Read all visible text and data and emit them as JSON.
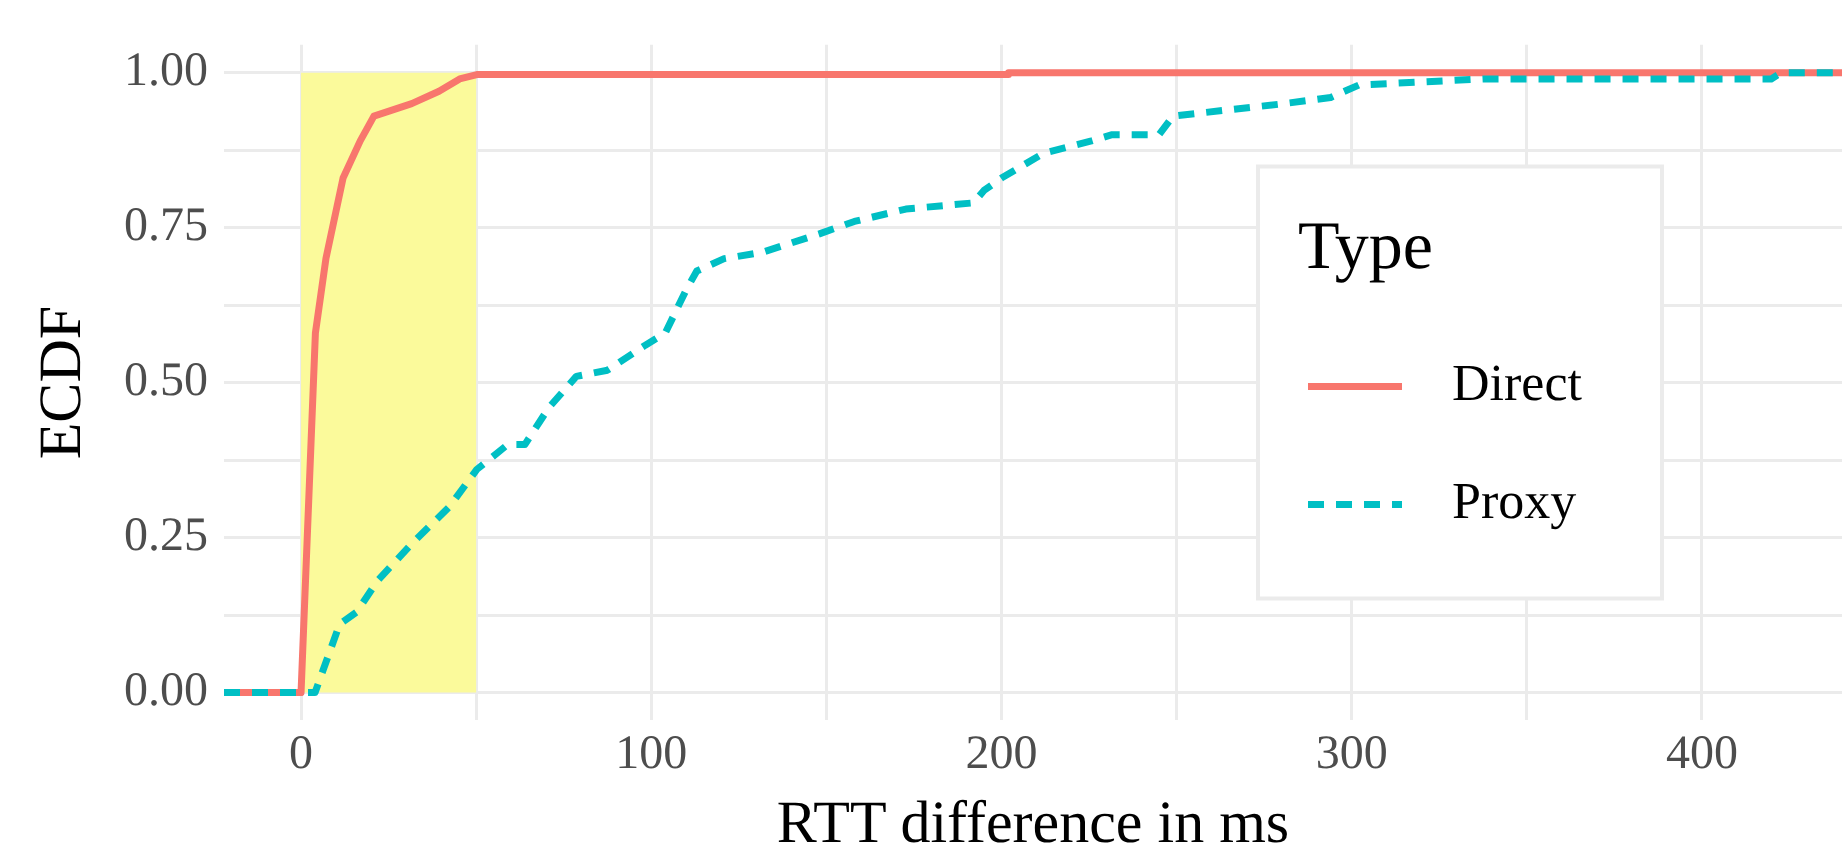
{
  "chart_data": {
    "type": "line",
    "xlabel": "RTT difference in ms",
    "ylabel": "ECDF",
    "legend_title": "Type",
    "legend": "right",
    "grid": true,
    "marker": "none",
    "xlim": [
      -22,
      440
    ],
    "ylim": [
      -0.045,
      1.045
    ],
    "xticks": [
      0,
      {
        "value": 50,
        "label": null
      },
      100,
      {
        "value": 150,
        "label": null
      },
      200,
      {
        "value": 250,
        "label": null
      },
      300,
      {
        "value": 350,
        "label": null
      },
      400
    ],
    "yticks": [
      "0.00",
      {
        "value": 0.125,
        "label": null
      },
      {
        "value": 0.25,
        "label": "0.25"
      },
      {
        "value": 0.375,
        "label": null
      },
      {
        "value": 0.5,
        "label": "0.50"
      },
      {
        "value": 0.625,
        "label": null
      },
      {
        "value": 0.75,
        "label": "0.75"
      },
      {
        "value": 0.875,
        "label": null
      },
      {
        "value": 1,
        "label": "1.00"
      }
    ],
    "bands": [
      {
        "axis": "x",
        "from": 0,
        "to": 50,
        "color": "#fbfa9b"
      }
    ],
    "series": [
      {
        "name": "Direct",
        "color": "#f8766d",
        "line_style": "solid",
        "x": [
          -22,
          0,
          4.1,
          7.1,
          12,
          16.9,
          20.8,
          31.6,
          39.4,
          45.3,
          50.2,
          202,
          202,
          440
        ],
        "values": [
          0,
          0,
          0.58,
          0.7,
          0.83,
          0.89,
          0.93,
          0.95,
          0.97,
          0.99,
          0.997,
          0.997,
          1,
          1
        ]
      },
      {
        "name": "Proxy",
        "color": "#00bfc4",
        "line_style": "dashed",
        "x": [
          -22,
          4,
          11,
          15.9,
          21.8,
          31.6,
          42.4,
          50.2,
          59,
          63.9,
          70.8,
          78.6,
          87.5,
          98.2,
          104,
          110,
          113,
          120.8,
          131.6,
          148,
          158,
          172.7,
          192,
          195,
          200,
          212,
          225.7,
          231.6,
          245,
          249,
          280.6,
          294,
          302,
          337.5,
          419.8,
          422.7,
          440
        ],
        "values": [
          0,
          0,
          0.11,
          0.13,
          0.18,
          0.24,
          0.3,
          0.36,
          0.4,
          0.4,
          0.46,
          0.51,
          0.52,
          0.56,
          0.58,
          0.65,
          0.68,
          0.7,
          0.71,
          0.74,
          0.76,
          0.78,
          0.79,
          0.81,
          0.83,
          0.87,
          0.89,
          0.9,
          0.9,
          0.93,
          0.95,
          0.96,
          0.98,
          0.99,
          0.99,
          1,
          1
        ]
      }
    ]
  }
}
